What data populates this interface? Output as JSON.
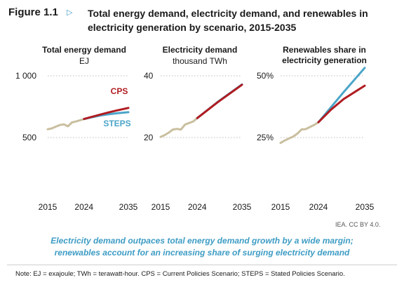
{
  "figure": {
    "label": "Figure 1.1",
    "arrow_icon": "play-triangle-icon",
    "title": "Total energy demand, electricity demand, and renewables in electricity generation by scenario, 2015-2035",
    "credit": "IEA. CC BY 4.0.",
    "caption_line1": "Electricity demand outpaces total energy demand growth by a wide margin;",
    "caption_line2": "renewables account for an increasing share of surging electricity demand",
    "note": "Note: EJ = exajoule; TWh = terawatt-hour. CPS = Current Policies Scenario; STEPS = Stated Policies Scenario."
  },
  "panels": [
    {
      "title": "Total energy demand",
      "subtitle": "EJ"
    },
    {
      "title": "Electricity demand",
      "subtitle": "thousand TWh"
    },
    {
      "title": "Renewables share in electricity generation",
      "subtitle": ""
    }
  ],
  "colors": {
    "historical": "#c9bf9f",
    "cps": "#b01c21",
    "steps": "#4ba5c8",
    "grid": "#bbbbbb",
    "caption": "#3d9cc4"
  },
  "chart_data": [
    {
      "type": "line",
      "title": "Total energy demand",
      "ylabel": "EJ",
      "xticks": [
        2015,
        2024,
        2035
      ],
      "yticks": [
        500,
        1000
      ],
      "ytick_labels": [
        "500",
        "1 000"
      ],
      "xlim": [
        2015,
        2035
      ],
      "ylim": [
        200,
        1000
      ],
      "grid": true,
      "series": [
        {
          "name": "",
          "role": "historical",
          "x": [
            2015,
            2016,
            2017,
            2018,
            2019,
            2020,
            2021,
            2022,
            2023,
            2024
          ],
          "y": [
            567,
            574,
            588,
            601,
            607,
            591,
            622,
            630,
            640,
            650
          ]
        },
        {
          "name": "CPS",
          "role": "cps",
          "x": [
            2024,
            2026,
            2028,
            2030,
            2032,
            2035
          ],
          "y": [
            650,
            668,
            686,
            703,
            718,
            740
          ]
        },
        {
          "name": "STEPS",
          "role": "steps",
          "x": [
            2024,
            2026,
            2028,
            2030,
            2032,
            2035
          ],
          "y": [
            650,
            665,
            678,
            688,
            696,
            705
          ]
        }
      ]
    },
    {
      "type": "line",
      "title": "Electricity demand",
      "ylabel": "thousand TWh",
      "xticks": [
        2015,
        2024,
        2035
      ],
      "yticks": [
        20,
        40
      ],
      "ytick_labels": [
        "20",
        "40"
      ],
      "xlim": [
        2015,
        2035
      ],
      "ylim": [
        8,
        40
      ],
      "grid": true,
      "series": [
        {
          "name": "",
          "role": "historical",
          "x": [
            2015,
            2016,
            2017,
            2018,
            2019,
            2020,
            2021,
            2022,
            2023,
            2024
          ],
          "y": [
            20.2,
            20.8,
            21.6,
            22.6,
            22.8,
            22.6,
            24.2,
            24.7,
            25.2,
            26.3
          ]
        },
        {
          "name": "",
          "role": "cps",
          "x": [
            2024,
            2029,
            2035
          ],
          "y": [
            26.3,
            31.4,
            37.1
          ]
        },
        {
          "name": "",
          "role": "steps",
          "x": [
            2024,
            2029,
            2035
          ],
          "y": [
            26.3,
            31.5,
            37.2
          ]
        }
      ]
    },
    {
      "type": "line",
      "title": "Renewables share in electricity generation",
      "ylabel": "",
      "xticks": [
        2015,
        2024,
        2035
      ],
      "yticks": [
        25,
        50
      ],
      "ytick_labels": [
        "25%",
        "50%"
      ],
      "xlim": [
        2015,
        2035
      ],
      "ylim": [
        0,
        50
      ],
      "grid": true,
      "series": [
        {
          "name": "",
          "role": "historical",
          "x": [
            2015,
            2016,
            2017,
            2018,
            2019,
            2020,
            2021,
            2022,
            2023,
            2024
          ],
          "y": [
            22.8,
            23.8,
            24.6,
            25.4,
            26.6,
            28.3,
            28.4,
            29.3,
            30.1,
            31.2
          ]
        },
        {
          "name": "",
          "role": "cps",
          "x": [
            2024,
            2027,
            2030,
            2035
          ],
          "y": [
            31.2,
            36.3,
            40.6,
            46.0
          ]
        },
        {
          "name": "",
          "role": "steps",
          "x": [
            2024,
            2027,
            2030,
            2035
          ],
          "y": [
            31.2,
            37.3,
            43.4,
            53.2
          ]
        }
      ]
    }
  ]
}
